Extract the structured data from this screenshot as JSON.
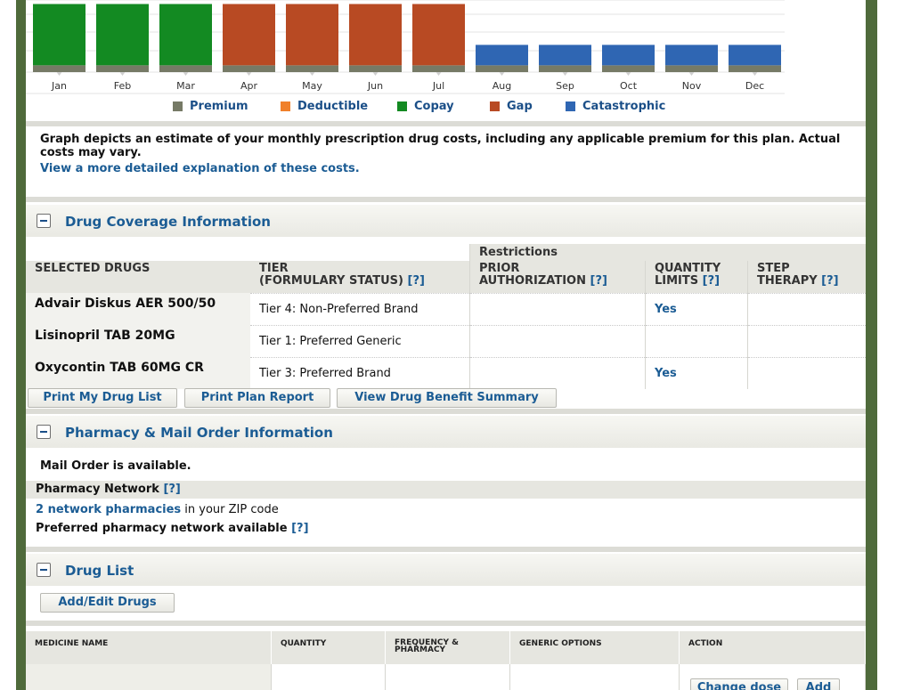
{
  "chart_data": {
    "type": "bar",
    "categories": [
      "Jan",
      "Feb",
      "Mar",
      "Apr",
      "May",
      "Jun",
      "Jul",
      "Aug",
      "Sep",
      "Oct",
      "Nov",
      "Dec"
    ],
    "series": [
      {
        "name": "Premium",
        "color": "#767a66",
        "values": [
          1,
          1,
          1,
          1,
          1,
          1,
          1,
          1,
          1,
          1,
          1,
          1
        ]
      },
      {
        "name": "Copay",
        "color": "#138a22",
        "values": [
          9,
          9,
          9,
          0,
          0,
          0,
          0,
          0,
          0,
          0,
          0,
          0
        ]
      },
      {
        "name": "Gap",
        "color": "#b84a23",
        "values": [
          0,
          0,
          0,
          9,
          9,
          9,
          9,
          0,
          0,
          0,
          0,
          0
        ]
      },
      {
        "name": "Catastrophic",
        "color": "#2f66b3",
        "values": [
          0,
          0,
          0,
          0,
          0,
          0,
          0,
          3,
          3,
          3,
          3,
          3
        ]
      }
    ],
    "legend": [
      {
        "name": "Premium",
        "color": "#767a66"
      },
      {
        "name": "Deductible",
        "color": "#f0802a"
      },
      {
        "name": "Copay",
        "color": "#138a22"
      },
      {
        "name": "Gap",
        "color": "#b84a23"
      },
      {
        "name": "Catastrophic",
        "color": "#2f66b3"
      }
    ],
    "legend_placement": "bottom",
    "grid": true
  },
  "chart_note": {
    "text": "Graph depicts an estimate of your monthly prescription drug costs, including any applicable premium for this plan. Actual costs may vary.",
    "link": "View a more detailed explanation of these costs."
  },
  "coverage": {
    "title": "Drug Coverage Information",
    "restrictions_label": "Restrictions",
    "headers": {
      "drugs": "SELECTED DRUGS",
      "tier": "TIER",
      "tier_sub": "(FORMULARY STATUS)",
      "prior": "PRIOR",
      "prior_sub": "AUTHORIZATION",
      "qty": "QUANTITY",
      "qty_sub": "LIMITS",
      "step": "STEP",
      "step_sub": "THERAPY",
      "help": "[?]"
    },
    "rows": [
      {
        "drug": "Advair Diskus AER 500/50",
        "tier": "Tier 4: Non-Preferred Brand",
        "prior": "",
        "qty": "Yes",
        "step": ""
      },
      {
        "drug": "Lisinopril TAB 20MG",
        "tier": "Tier 1: Preferred Generic",
        "prior": "",
        "qty": "",
        "step": ""
      },
      {
        "drug": "Oxycontin TAB 60MG CR",
        "tier": "Tier 3: Preferred Brand",
        "prior": "",
        "qty": "Yes",
        "step": ""
      }
    ],
    "buttons": {
      "print_list": "Print My Drug List",
      "print_report": "Print Plan Report",
      "benefit_summary": "View Drug Benefit Summary"
    }
  },
  "pharmacy": {
    "title": "Pharmacy & Mail Order Information",
    "mail_order": "Mail Order is available.",
    "network_label": "Pharmacy Network",
    "help": "[?]",
    "network_link": "2 network pharmacies",
    "network_suffix": " in your ZIP code",
    "preferred": "Preferred pharmacy network available"
  },
  "drug_list": {
    "title": "Drug List",
    "add_edit": "Add/Edit Drugs",
    "columns": [
      "MEDICINE NAME",
      "QUANTITY",
      "FREQUENCY & PHARMACY",
      "GENERIC OPTIONS",
      "ACTION"
    ],
    "change_dose": "Change dose",
    "add": "Add"
  }
}
